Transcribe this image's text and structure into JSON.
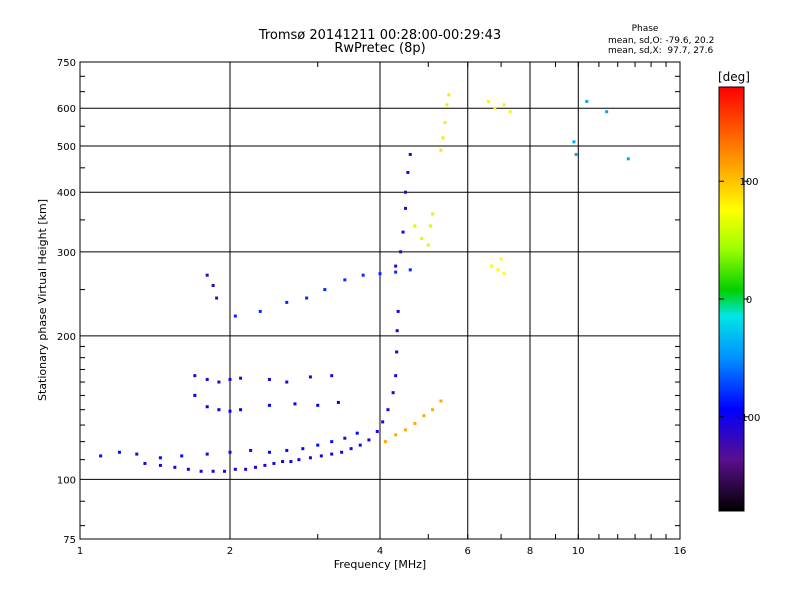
{
  "chart_data": {
    "type": "scatter",
    "title": "Tromsø 20141211 00:28:00-00:29:43",
    "subtitle": "RwPretec (8p)",
    "xlabel": "Frequency [MHz]",
    "ylabel": "Stationary phase Virtual Height [km]",
    "x_scale": "log",
    "y_scale": "log",
    "xlim": [
      1,
      16
    ],
    "ylim": [
      75,
      750
    ],
    "grid": true,
    "x_ticks": [
      1,
      2,
      4,
      6,
      8,
      10,
      16
    ],
    "x_ticklabels": [
      "1",
      "2",
      "4",
      "6",
      "8",
      "10",
      "16"
    ],
    "y_ticks": [
      75,
      100,
      200,
      300,
      400,
      500,
      600,
      750
    ],
    "y_ticklabels": [
      "75",
      "100",
      "200",
      "300",
      "400",
      "500",
      "600",
      "750"
    ],
    "phase_stats": {
      "label": "Phase",
      "o_line": "mean, sd,O: -79.6, 20.2",
      "x_line": "mean, sd,X:  97.7, 27.6"
    },
    "colorbar": {
      "label": "[deg]",
      "range": [
        -180,
        180
      ],
      "ticks": [
        -100,
        0,
        100
      ],
      "ticklabels": [
        "-100",
        "0",
        "100"
      ]
    },
    "series": [
      {
        "points": [
          [
            1.35,
            108
          ],
          [
            1.45,
            107
          ],
          [
            1.55,
            106
          ],
          [
            1.65,
            105
          ],
          [
            1.75,
            104
          ],
          [
            1.85,
            104
          ],
          [
            1.95,
            104
          ],
          [
            2.05,
            105
          ],
          [
            2.15,
            105
          ],
          [
            2.25,
            106
          ],
          [
            2.35,
            107
          ],
          [
            2.45,
            108
          ],
          [
            2.55,
            109
          ],
          [
            2.65,
            109
          ],
          [
            2.75,
            110
          ],
          [
            2.9,
            111
          ],
          [
            3.05,
            112
          ],
          [
            3.2,
            113
          ],
          [
            3.35,
            114
          ],
          [
            3.5,
            116
          ],
          [
            3.65,
            118
          ],
          [
            3.8,
            121
          ],
          [
            3.95,
            126
          ],
          [
            4.05,
            132
          ],
          [
            4.15,
            140
          ],
          [
            4.25,
            152
          ],
          [
            4.3,
            165
          ],
          [
            4.32,
            185
          ],
          [
            4.33,
            205
          ],
          [
            4.35,
            225
          ]
        ],
        "phase": -105
      },
      {
        "points": [
          [
            1.1,
            112
          ],
          [
            1.2,
            114
          ],
          [
            1.3,
            113
          ],
          [
            1.45,
            111
          ],
          [
            1.6,
            112
          ],
          [
            1.8,
            113
          ],
          [
            2.0,
            114
          ],
          [
            2.2,
            115
          ],
          [
            2.4,
            114
          ],
          [
            2.6,
            115
          ],
          [
            2.8,
            116
          ],
          [
            3.0,
            118
          ],
          [
            3.2,
            120
          ],
          [
            3.4,
            122
          ],
          [
            3.6,
            125
          ]
        ],
        "phase": -90
      },
      {
        "points": [
          [
            1.7,
            150
          ],
          [
            1.8,
            142
          ],
          [
            1.9,
            140
          ],
          [
            2.0,
            139
          ],
          [
            2.1,
            140
          ],
          [
            2.4,
            143
          ],
          [
            2.7,
            144
          ],
          [
            3.0,
            143
          ],
          [
            3.3,
            145
          ]
        ],
        "phase": -95
      },
      {
        "points": [
          [
            1.7,
            165
          ],
          [
            1.8,
            162
          ],
          [
            1.9,
            160
          ],
          [
            2.0,
            162
          ],
          [
            2.1,
            163
          ],
          [
            2.4,
            162
          ],
          [
            2.6,
            160
          ],
          [
            2.9,
            164
          ],
          [
            3.2,
            165
          ]
        ],
        "phase": -110
      },
      {
        "points": [
          [
            1.8,
            268
          ],
          [
            1.85,
            255
          ],
          [
            1.88,
            240
          ]
        ],
        "phase": -115
      },
      {
        "points": [
          [
            2.05,
            220
          ],
          [
            2.3,
            225
          ],
          [
            2.6,
            235
          ],
          [
            2.85,
            240
          ],
          [
            3.1,
            250
          ],
          [
            3.4,
            262
          ],
          [
            3.7,
            268
          ],
          [
            4.0,
            270
          ],
          [
            4.3,
            272
          ],
          [
            4.6,
            275
          ]
        ],
        "phase": -80
      },
      {
        "points": [
          [
            4.1,
            120
          ],
          [
            4.3,
            124
          ],
          [
            4.5,
            127
          ],
          [
            4.7,
            131
          ],
          [
            4.9,
            136
          ],
          [
            5.1,
            140
          ],
          [
            5.3,
            146
          ]
        ],
        "phase": 110
      },
      {
        "points": [
          [
            4.3,
            280
          ],
          [
            4.4,
            300
          ],
          [
            4.45,
            330
          ],
          [
            4.5,
            370
          ],
          [
            4.5,
            400
          ],
          [
            4.55,
            440
          ],
          [
            4.6,
            480
          ]
        ],
        "phase": -112
      },
      {
        "points": [
          [
            4.7,
            340
          ],
          [
            4.85,
            320
          ],
          [
            5.0,
            310
          ],
          [
            5.05,
            340
          ],
          [
            5.1,
            360
          ]
        ],
        "phase": 60
      },
      {
        "points": [
          [
            5.3,
            490
          ],
          [
            5.35,
            520
          ],
          [
            5.4,
            560
          ],
          [
            5.45,
            610
          ],
          [
            5.5,
            640
          ]
        ],
        "phase": 85
      },
      {
        "points": [
          [
            6.6,
            620
          ],
          [
            6.8,
            600
          ],
          [
            7.1,
            610
          ],
          [
            7.3,
            590
          ]
        ],
        "phase": 80
      },
      {
        "points": [
          [
            6.7,
            280
          ],
          [
            6.9,
            275
          ],
          [
            7.0,
            290
          ],
          [
            7.1,
            270
          ]
        ],
        "phase": 75
      },
      {
        "points": [
          [
            9.8,
            510
          ],
          [
            9.9,
            480
          ],
          [
            11.4,
            590
          ],
          [
            12.6,
            470
          ],
          [
            10.4,
            620
          ]
        ],
        "phase": -40
      }
    ]
  }
}
